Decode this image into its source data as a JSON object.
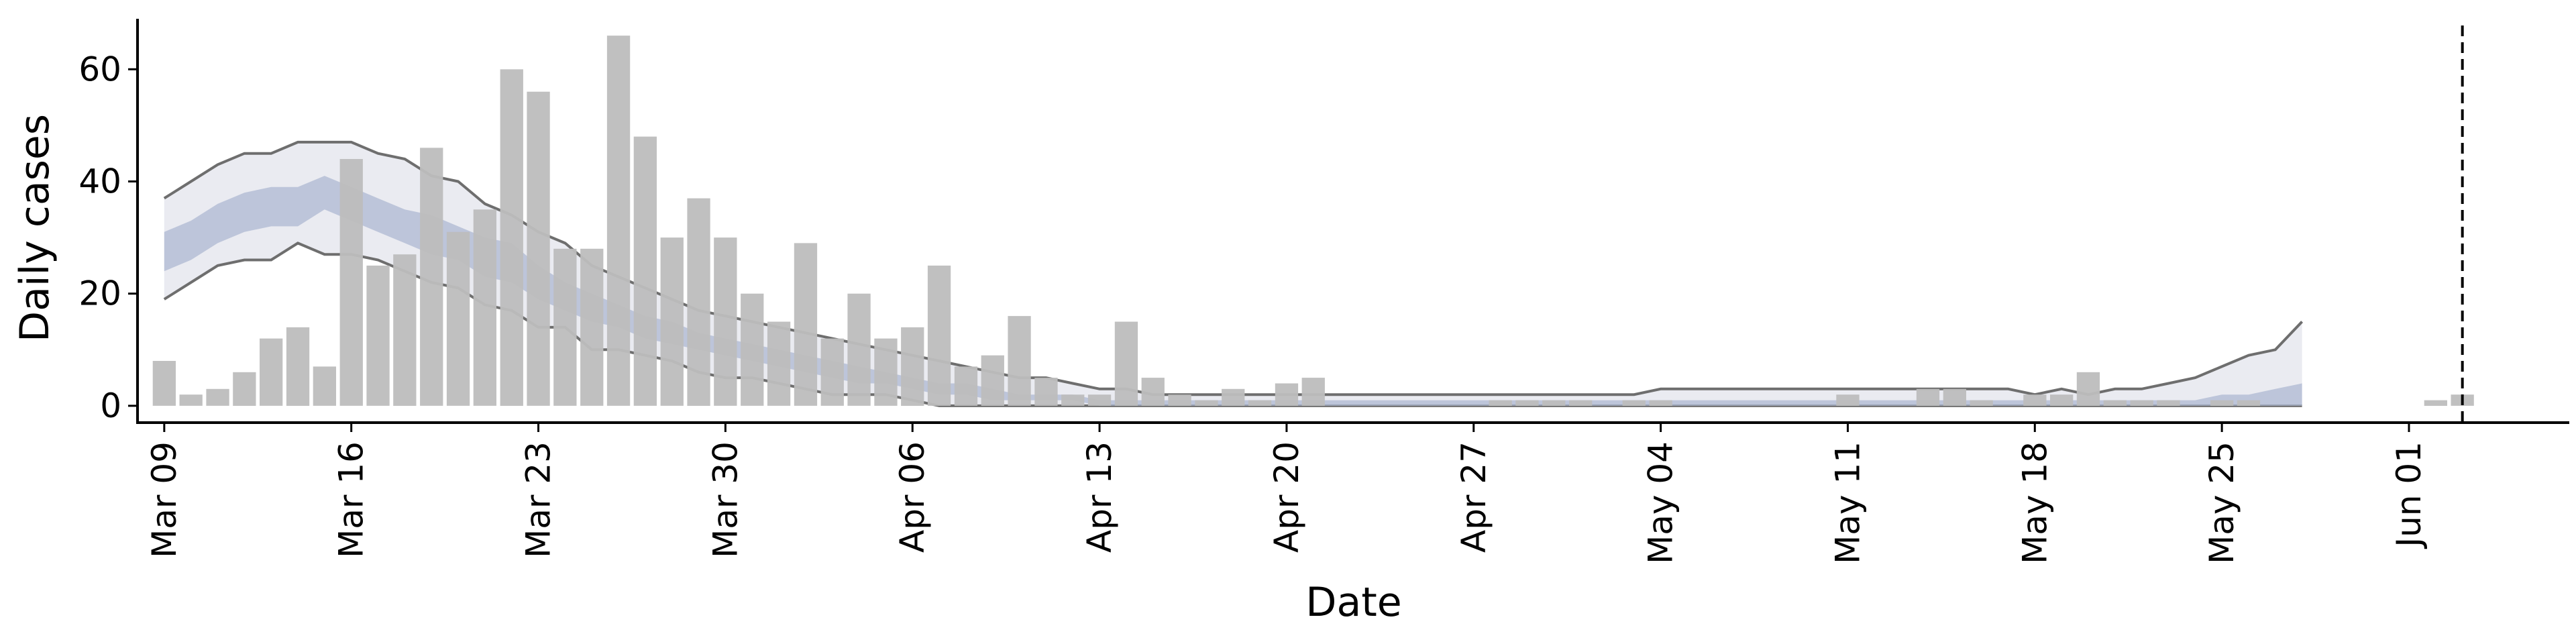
{
  "chart_data": {
    "type": "bar",
    "xlabel": "Date",
    "ylabel": "Daily cases",
    "x_axis_kind": "date",
    "xlim": [
      "2020-03-08",
      "2020-06-07"
    ],
    "ylim": [
      -3,
      69
    ],
    "y_ticks": [
      0,
      20,
      40,
      60
    ],
    "x_ticks": [
      {
        "date": "2020-03-09",
        "label": "Mar 09"
      },
      {
        "date": "2020-03-16",
        "label": "Mar 16"
      },
      {
        "date": "2020-03-23",
        "label": "Mar 23"
      },
      {
        "date": "2020-03-30",
        "label": "Mar 30"
      },
      {
        "date": "2020-04-06",
        "label": "Apr 06"
      },
      {
        "date": "2020-04-13",
        "label": "Apr 13"
      },
      {
        "date": "2020-04-20",
        "label": "Apr 20"
      },
      {
        "date": "2020-04-27",
        "label": "Apr 27"
      },
      {
        "date": "2020-05-04",
        "label": "May 04"
      },
      {
        "date": "2020-05-11",
        "label": "May 11"
      },
      {
        "date": "2020-05-18",
        "label": "May 18"
      },
      {
        "date": "2020-05-25",
        "label": "May 25"
      },
      {
        "date": "2020-06-01",
        "label": "Jun 01"
      }
    ],
    "bars": {
      "color": "#bdbdbd",
      "dates": [
        "2020-03-09",
        "2020-03-10",
        "2020-03-11",
        "2020-03-12",
        "2020-03-13",
        "2020-03-14",
        "2020-03-15",
        "2020-03-16",
        "2020-03-17",
        "2020-03-18",
        "2020-03-19",
        "2020-03-20",
        "2020-03-21",
        "2020-03-22",
        "2020-03-23",
        "2020-03-24",
        "2020-03-25",
        "2020-03-26",
        "2020-03-27",
        "2020-03-28",
        "2020-03-29",
        "2020-03-30",
        "2020-03-31",
        "2020-04-01",
        "2020-04-02",
        "2020-04-03",
        "2020-04-04",
        "2020-04-05",
        "2020-04-06",
        "2020-04-07",
        "2020-04-08",
        "2020-04-09",
        "2020-04-10",
        "2020-04-11",
        "2020-04-12",
        "2020-04-13",
        "2020-04-14",
        "2020-04-15",
        "2020-04-16",
        "2020-04-17",
        "2020-04-18",
        "2020-04-19",
        "2020-04-20",
        "2020-04-21",
        "2020-04-22",
        "2020-04-23",
        "2020-04-24",
        "2020-04-25",
        "2020-04-26",
        "2020-04-27",
        "2020-04-28",
        "2020-04-29",
        "2020-04-30",
        "2020-05-01",
        "2020-05-02",
        "2020-05-03",
        "2020-05-04",
        "2020-05-05",
        "2020-05-06",
        "2020-05-07",
        "2020-05-08",
        "2020-05-09",
        "2020-05-10",
        "2020-05-11",
        "2020-05-12",
        "2020-05-13",
        "2020-05-14",
        "2020-05-15",
        "2020-05-16",
        "2020-05-17",
        "2020-05-18",
        "2020-05-19",
        "2020-05-20",
        "2020-05-21",
        "2020-05-22",
        "2020-05-23",
        "2020-05-24",
        "2020-05-25",
        "2020-05-26",
        "2020-06-02",
        "2020-06-03"
      ],
      "values": [
        8,
        2,
        3,
        6,
        12,
        14,
        7,
        44,
        25,
        27,
        46,
        31,
        35,
        60,
        56,
        28,
        28,
        66,
        48,
        30,
        37,
        30,
        20,
        15,
        29,
        12,
        20,
        12,
        14,
        25,
        7,
        9,
        16,
        5,
        2,
        2,
        15,
        5,
        2,
        1,
        3,
        1,
        4,
        5,
        0,
        0,
        0,
        0,
        0,
        0,
        1,
        1,
        1,
        1,
        0,
        1,
        1,
        0,
        0,
        0,
        0,
        0,
        0,
        2,
        0,
        0,
        3,
        3,
        1,
        0,
        2,
        2,
        6,
        1,
        1,
        1,
        0,
        1,
        1,
        1,
        2
      ]
    },
    "series": [
      {
        "kind": "outer_band",
        "fill": "#e6e7ee",
        "edge": "#6e6e6e",
        "dates_start": "2020-03-09",
        "upper": [
          37,
          40,
          43,
          45,
          45,
          47,
          47,
          47,
          45,
          44,
          41,
          40,
          36,
          34,
          31,
          29,
          25,
          23,
          21,
          19,
          17,
          16,
          15,
          14,
          13,
          12,
          11,
          10,
          9,
          8,
          7,
          6,
          5,
          5,
          4,
          3,
          3,
          2,
          2,
          2,
          2,
          2,
          2,
          2,
          2,
          2,
          2,
          2,
          2,
          2,
          2,
          2,
          2,
          2,
          2,
          2,
          3,
          3,
          3,
          3,
          3,
          3,
          3,
          3,
          3,
          3,
          3,
          3,
          3,
          3,
          2,
          3,
          2,
          3,
          3,
          4,
          5,
          7,
          9,
          10,
          15
        ],
        "lower": [
          19,
          22,
          25,
          26,
          26,
          29,
          27,
          27,
          26,
          24,
          22,
          21,
          18,
          17,
          14,
          14,
          10,
          10,
          9,
          8,
          6,
          5,
          5,
          4,
          3,
          2,
          2,
          2,
          1,
          0,
          0,
          0,
          0,
          0,
          0,
          0,
          0,
          0,
          0,
          0,
          0,
          0,
          0,
          0,
          0,
          0,
          0,
          0,
          0,
          0,
          0,
          0,
          0,
          0,
          0,
          0,
          0,
          0,
          0,
          0,
          0,
          0,
          0,
          0,
          0,
          0,
          0,
          0,
          0,
          0,
          0,
          0,
          0,
          0,
          0,
          0,
          0,
          0,
          0,
          0,
          0
        ]
      },
      {
        "kind": "inner_band",
        "fill": "#aeb8d2",
        "dates_start": "2020-03-09",
        "upper": [
          31,
          33,
          36,
          38,
          39,
          39,
          41,
          39,
          37,
          35,
          34,
          32,
          30,
          29,
          25,
          22,
          20,
          18,
          16,
          15,
          13,
          12,
          11,
          10,
          9,
          8,
          7,
          6,
          5,
          4,
          4,
          3,
          2,
          2,
          2,
          1,
          1,
          1,
          1,
          1,
          1,
          1,
          1,
          1,
          1,
          1,
          1,
          1,
          1,
          1,
          1,
          1,
          1,
          1,
          1,
          1,
          1,
          1,
          1,
          1,
          1,
          1,
          1,
          1,
          1,
          1,
          1,
          1,
          1,
          1,
          1,
          1,
          1,
          1,
          1,
          1,
          1,
          2,
          2,
          3,
          4
        ],
        "lower": [
          24,
          26,
          29,
          31,
          32,
          32,
          35,
          33,
          31,
          29,
          27,
          26,
          23,
          22,
          19,
          17,
          15,
          14,
          12,
          11,
          10,
          9,
          8,
          7,
          6,
          5,
          4,
          4,
          3,
          2,
          2,
          1,
          1,
          1,
          1,
          0,
          0,
          0,
          0,
          0,
          0,
          0,
          0,
          0,
          0,
          0,
          0,
          0,
          0,
          0,
          0,
          0,
          0,
          0,
          0,
          0,
          0,
          0,
          0,
          0,
          0,
          0,
          0,
          0,
          0,
          0,
          0,
          0,
          0,
          0,
          0,
          0,
          0,
          0,
          0,
          0,
          0,
          0,
          0,
          0,
          0
        ]
      }
    ],
    "vline": {
      "date": "2020-06-03",
      "style": "dashed",
      "color": "#000000"
    }
  }
}
